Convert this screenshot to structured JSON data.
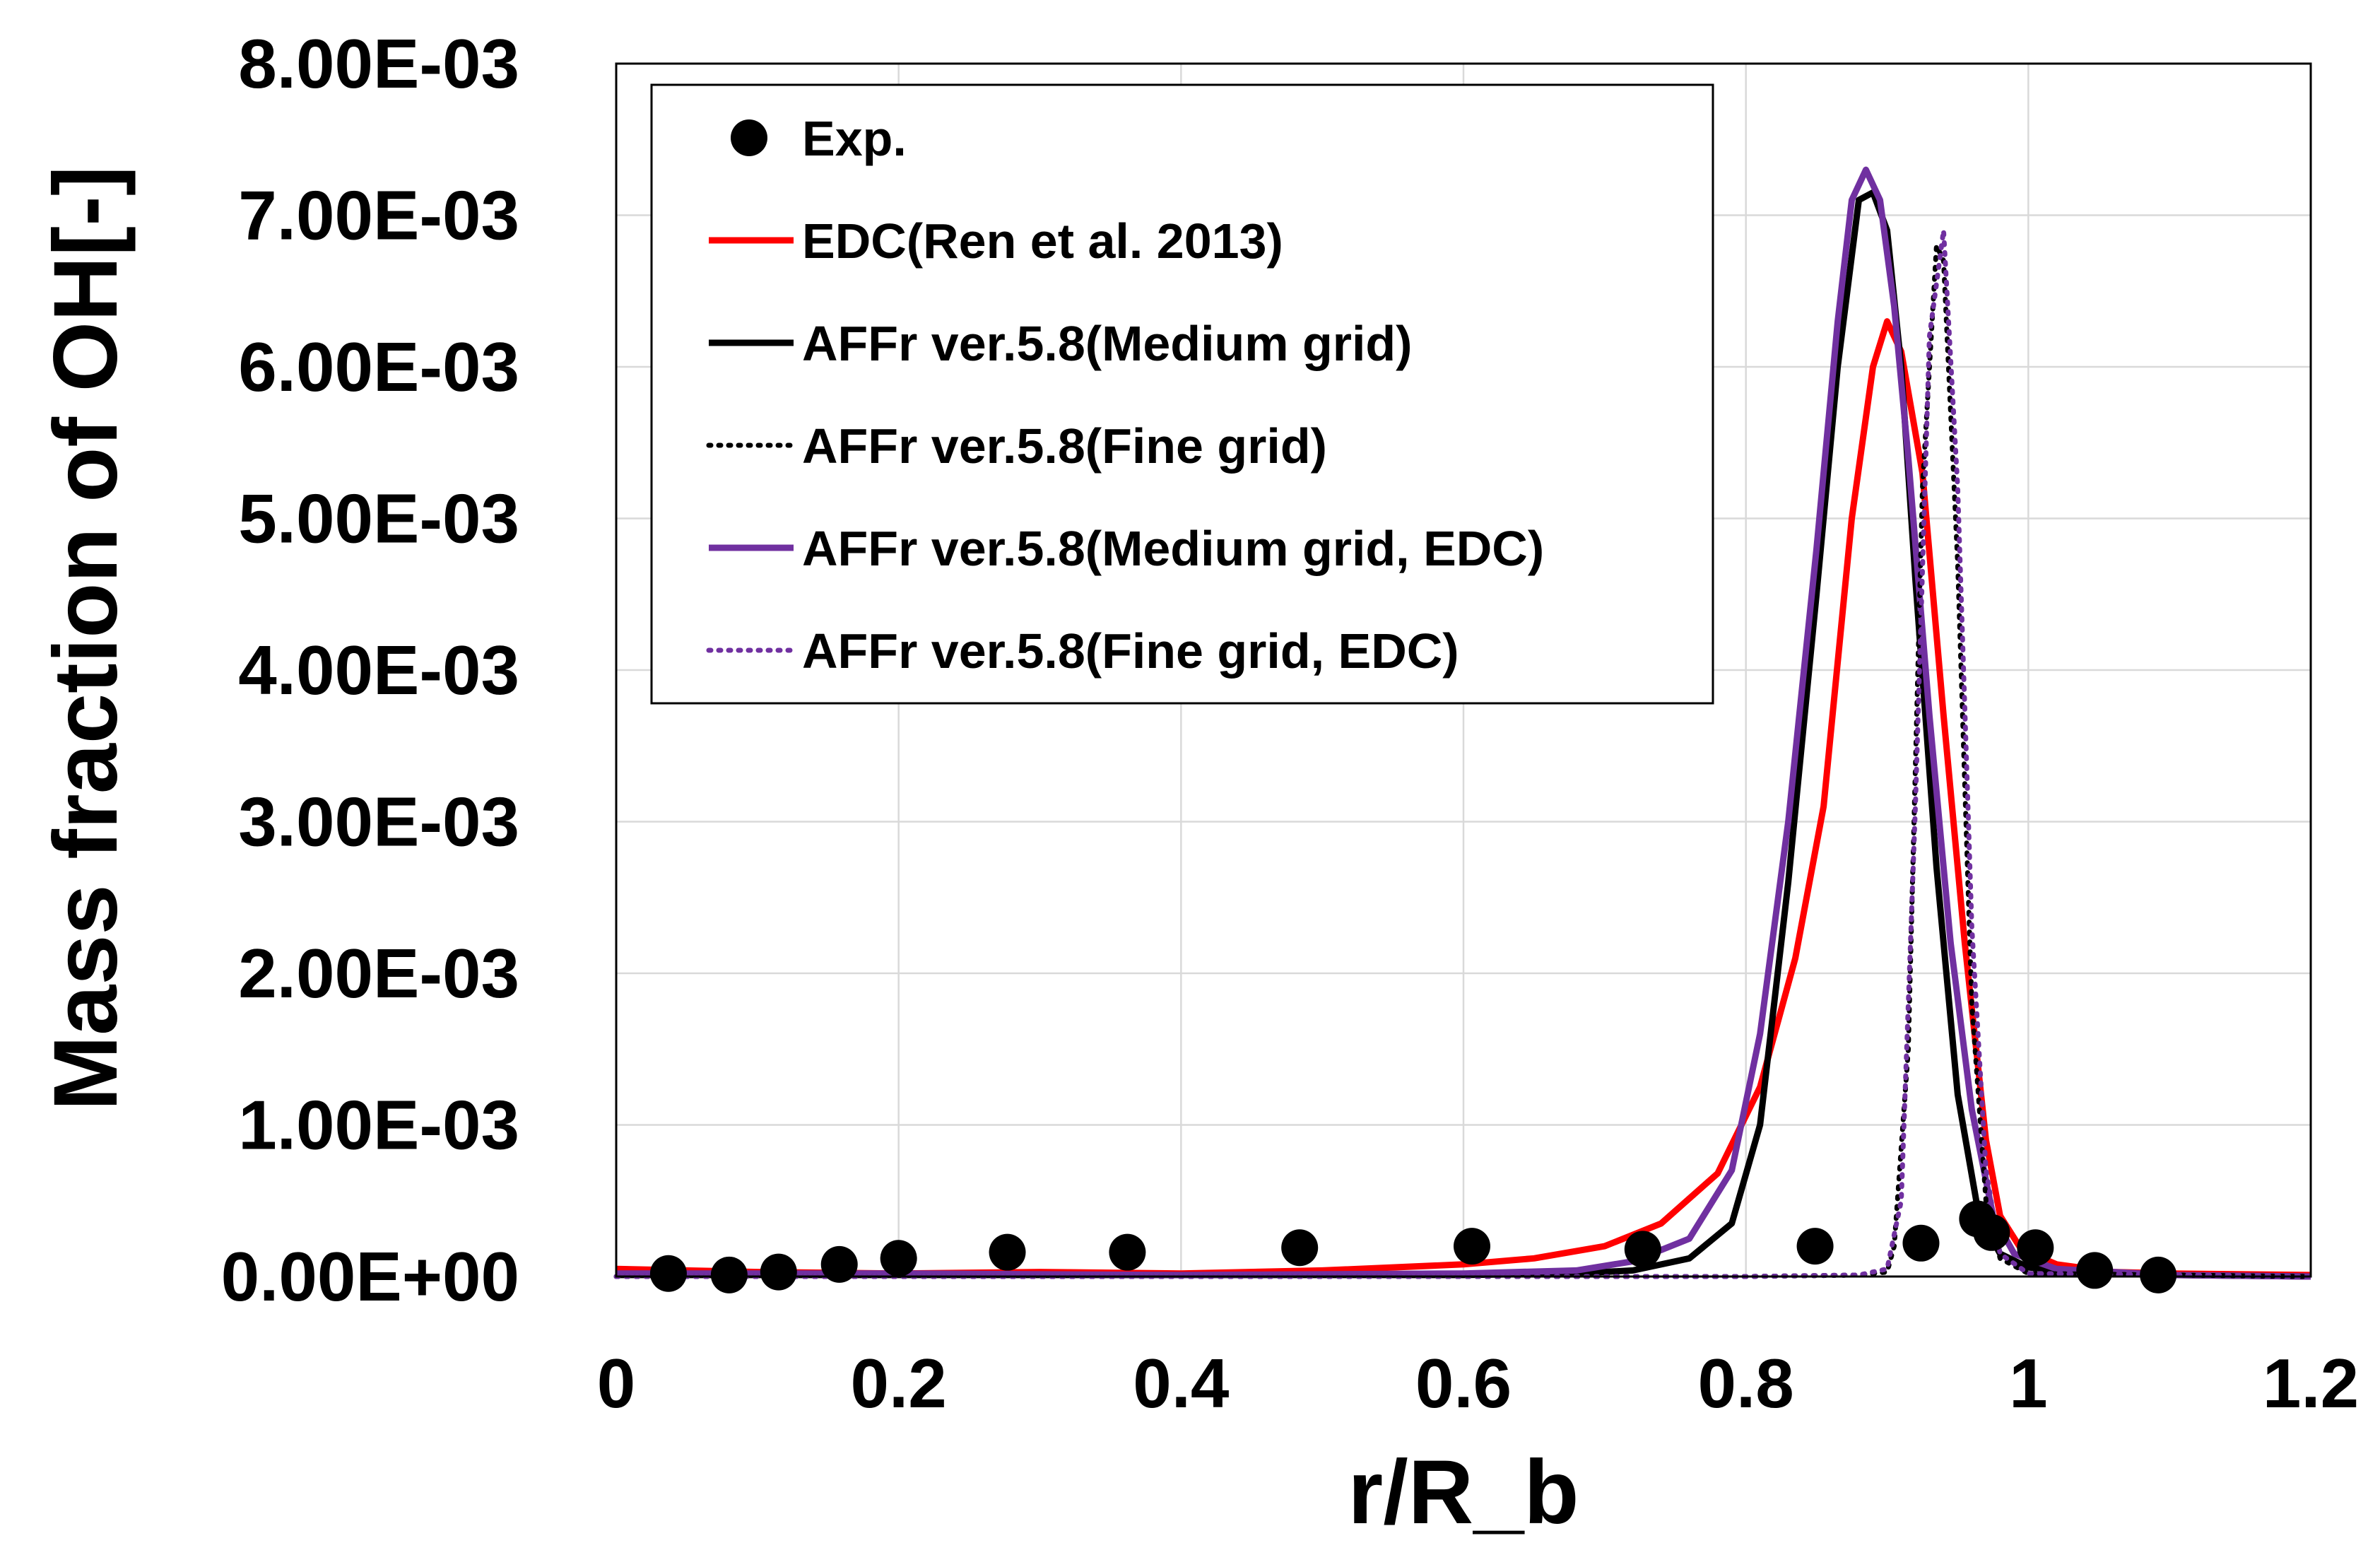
{
  "chart_data": {
    "type": "line",
    "title": "",
    "xlabel": "r/R_b",
    "ylabel": "Mass fraction of OH[-]",
    "xlim": [
      0,
      1.2
    ],
    "ylim": [
      0,
      0.008
    ],
    "grid": true,
    "legend_position": "top-left",
    "x_ticks": [
      0,
      0.2,
      0.4,
      0.6,
      0.8,
      1,
      1.2
    ],
    "x_tick_labels": [
      "0",
      "0.2",
      "0.4",
      "0.6",
      "0.8",
      "1",
      "1.2"
    ],
    "y_ticks": [
      0,
      0.001,
      0.002,
      0.003,
      0.004,
      0.005,
      0.006,
      0.007,
      0.008
    ],
    "y_tick_labels": [
      "0.00E+00",
      "1.00E-03",
      "2.00E-03",
      "3.00E-03",
      "4.00E-03",
      "5.00E-03",
      "6.00E-03",
      "7.00E-03",
      "8.00E-03"
    ],
    "series": [
      {
        "name": "Exp.",
        "kind": "scatter",
        "color": "#000000",
        "x": [
          0.037,
          0.08,
          0.115,
          0.158,
          0.2,
          0.277,
          0.362,
          0.484,
          0.606,
          0.727,
          0.849,
          0.924,
          0.964,
          0.974,
          1.005,
          1.047,
          1.092
        ],
        "y": [
          2e-05,
          1e-05,
          3e-05,
          8e-05,
          0.00012,
          0.00016,
          0.00016,
          0.00019,
          0.0002,
          0.00018,
          0.0002,
          0.00022,
          0.00038,
          0.00029,
          0.00019,
          4e-05,
          1e-05
        ]
      },
      {
        "name": "EDC(Ren et al. 2013)",
        "kind": "line",
        "style": "solid",
        "color": "#ff0000",
        "x": [
          0,
          0.1,
          0.2,
          0.3,
          0.4,
          0.5,
          0.6,
          0.65,
          0.7,
          0.74,
          0.78,
          0.81,
          0.835,
          0.855,
          0.875,
          0.89,
          0.9,
          0.91,
          0.925,
          0.94,
          0.955,
          0.97,
          0.98,
          0.995,
          1.02,
          1.06,
          1.1,
          1.2
        ],
        "y": [
          5e-05,
          3e-05,
          2e-05,
          3e-05,
          2e-05,
          4e-05,
          8e-05,
          0.00012,
          0.0002,
          0.00035,
          0.00068,
          0.00125,
          0.0021,
          0.0031,
          0.005,
          0.006,
          0.0063,
          0.0061,
          0.0053,
          0.0037,
          0.0022,
          0.0009,
          0.0004,
          0.00018,
          8e-05,
          3e-05,
          2e-05,
          1e-05
        ]
      },
      {
        "name": "AFFr ver.5.8(Medium grid)",
        "kind": "line",
        "style": "solid",
        "color": "#000000",
        "x": [
          0,
          0.2,
          0.4,
          0.6,
          0.68,
          0.72,
          0.76,
          0.79,
          0.81,
          0.83,
          0.85,
          0.865,
          0.88,
          0.89,
          0.9,
          0.91,
          0.92,
          0.935,
          0.95,
          0.965,
          0.98,
          1.0,
          1.04,
          1.1,
          1.2
        ],
        "y": [
          1e-05,
          1e-05,
          1e-05,
          1e-05,
          2e-05,
          4e-05,
          0.00012,
          0.00035,
          0.001,
          0.0026,
          0.0045,
          0.006,
          0.0071,
          0.00715,
          0.0069,
          0.006,
          0.0046,
          0.0027,
          0.0012,
          0.0004,
          0.00015,
          6e-05,
          3e-05,
          1e-05,
          0.0
        ]
      },
      {
        "name": "AFFr ver.5.8(Fine grid)",
        "kind": "line",
        "style": "dotted",
        "color": "#000000",
        "x": [
          0,
          0.4,
          0.8,
          0.88,
          0.9,
          0.905,
          0.915,
          0.925,
          0.935,
          0.94,
          0.95,
          0.96,
          0.97,
          0.98,
          1.0,
          1.2
        ],
        "y": [
          0.0,
          0.0,
          0.0,
          1e-05,
          3e-05,
          0.0002,
          0.0015,
          0.0052,
          0.0068,
          0.0067,
          0.0047,
          0.0018,
          0.0005,
          0.00012,
          2e-05,
          0.0
        ]
      },
      {
        "name": "AFFr ver.5.8(Medium grid, EDC)",
        "kind": "line",
        "style": "solid",
        "color": "#7030a0",
        "x": [
          0,
          0.2,
          0.4,
          0.6,
          0.68,
          0.72,
          0.76,
          0.79,
          0.81,
          0.83,
          0.85,
          0.865,
          0.875,
          0.885,
          0.895,
          0.905,
          0.915,
          0.93,
          0.945,
          0.96,
          0.975,
          0.99,
          1.02,
          1.1,
          1.2
        ],
        "y": [
          2e-05,
          2e-05,
          1e-05,
          2e-05,
          4e-05,
          0.0001,
          0.00025,
          0.0007,
          0.0016,
          0.003,
          0.0048,
          0.0063,
          0.0071,
          0.0073,
          0.0071,
          0.0064,
          0.0054,
          0.0037,
          0.0022,
          0.0011,
          0.0004,
          0.00015,
          5e-05,
          1e-05,
          0.0
        ]
      },
      {
        "name": "AFFr ver.5.8(Fine grid, EDC)",
        "kind": "line",
        "style": "dotted",
        "color": "#7030a0",
        "x": [
          0,
          0.4,
          0.8,
          0.88,
          0.9,
          0.91,
          0.92,
          0.93,
          0.94,
          0.95,
          0.96,
          0.97,
          0.98,
          1.0,
          1.2
        ],
        "y": [
          0.0,
          0.0,
          0.0,
          1e-05,
          5e-05,
          0.0005,
          0.0031,
          0.0062,
          0.0069,
          0.0052,
          0.0023,
          0.0007,
          0.00015,
          2e-05,
          0.0
        ]
      }
    ]
  }
}
